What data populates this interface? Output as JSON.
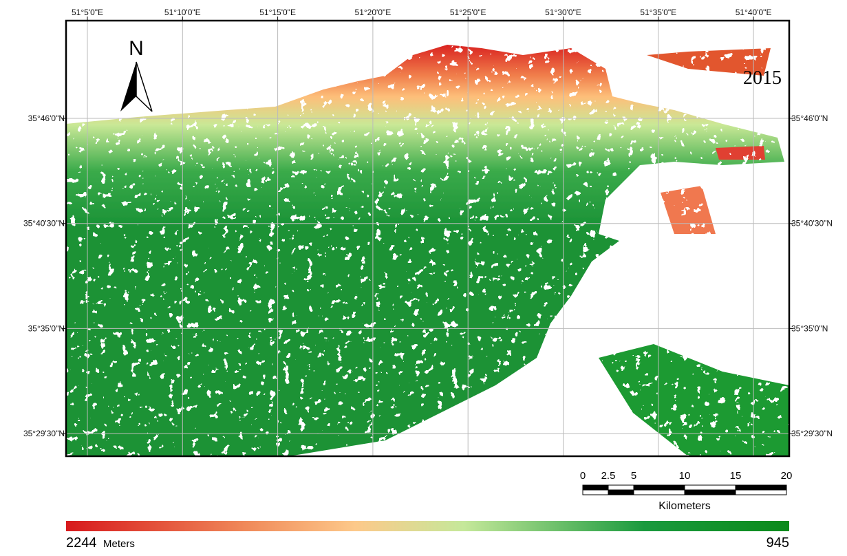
{
  "map": {
    "year": "2015",
    "north": "N",
    "longitude_labels": [
      "51°5'0\"E",
      "51°10'0\"E",
      "51°15'0\"E",
      "51°20'0\"E",
      "51°25'0\"E",
      "51°30'0\"E",
      "51°35'0\"E",
      "51°40'0\"E"
    ],
    "latitude_labels": [
      "35°46'0\"N",
      "35°40'30\"N",
      "35°35'0\"N",
      "35°29'30\"N"
    ]
  },
  "scale_bar": {
    "ticks": [
      0,
      2.5,
      5,
      10,
      15,
      20
    ],
    "unit": "Kilometers"
  },
  "legend": {
    "max": 2244,
    "unit": "Meters",
    "min": 945
  }
}
